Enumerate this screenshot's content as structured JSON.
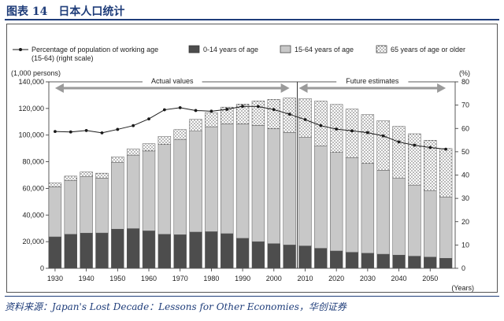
{
  "figure_title": "图表 14　日本人口统计",
  "source": "资料来源：Japan's Lost Decade：Lessons for Other Economies，华创证券",
  "colors": {
    "brand": "#1f3d7a",
    "young": "#4d4d4d",
    "working": "#c8c8c8",
    "elderly": "#ffffff",
    "line": "#1a1a1a",
    "arrow": "#9a9a9a"
  },
  "chart_data": {
    "type": "bar",
    "subtype": "stacked bar with line overlay",
    "left_axis_unit": "(1,000 persons)",
    "right_axis_unit": "(%)",
    "x_axis_unit": "(Years)",
    "ylim": [
      0,
      140000
    ],
    "y_ticks": [
      "0",
      "20,000",
      "40,000",
      "60,000",
      "80,000",
      "100,000",
      "120,000",
      "140,000"
    ],
    "y2lim": [
      0,
      80
    ],
    "y2_ticks": [
      "0",
      "10",
      "20",
      "30",
      "40",
      "50",
      "60",
      "70",
      "80"
    ],
    "x_ticks": [
      "1930",
      "1940",
      "1950",
      "1960",
      "1970",
      "1980",
      "1990",
      "2000",
      "2010",
      "2020",
      "2030",
      "2040",
      "2050"
    ],
    "x": [
      1930,
      1935,
      1940,
      1945,
      1950,
      1955,
      1960,
      1965,
      1970,
      1975,
      1980,
      1985,
      1990,
      1995,
      2000,
      2005,
      2010,
      2015,
      2020,
      2025,
      2030,
      2035,
      2040,
      2045,
      2050,
      2055
    ],
    "series": [
      {
        "name": "0-14 years of age",
        "pattern": "dark",
        "values": [
          23600,
          25500,
          26400,
          26500,
          29400,
          29800,
          28100,
          25500,
          25200,
          27200,
          27500,
          26000,
          22500,
          20000,
          18500,
          17500,
          16800,
          15000,
          13000,
          12000,
          11300,
          10600,
          9900,
          9100,
          8400,
          7500
        ]
      },
      {
        "name": "15-64 years of age",
        "pattern": "light",
        "values": [
          37600,
          40500,
          42400,
          41200,
          50200,
          55200,
          60000,
          67400,
          71600,
          75800,
          78800,
          82500,
          85900,
          87300,
          86300,
          84500,
          81700,
          77000,
          74000,
          71000,
          67400,
          63000,
          57900,
          53400,
          50000,
          46000
        ]
      },
      {
        "name": "65 years of age or older",
        "pattern": "dotted",
        "values": [
          2800,
          3200,
          3500,
          3700,
          4100,
          4700,
          5400,
          6200,
          7300,
          8900,
          10600,
          12500,
          14900,
          18300,
          22000,
          25800,
          28900,
          33500,
          36000,
          36500,
          36700,
          37300,
          38700,
          38500,
          37700,
          36400
        ]
      },
      {
        "name": "Percentage of population of working age (15-64) (right scale)",
        "axis": "right",
        "values": [
          58.7,
          58.5,
          59.1,
          58.1,
          59.6,
          61.2,
          64.1,
          68.0,
          68.9,
          67.7,
          67.4,
          68.2,
          69.5,
          69.4,
          68.1,
          66.1,
          63.8,
          61.2,
          59.7,
          59.0,
          58.2,
          56.8,
          54.2,
          52.8,
          51.8,
          51.1
        ]
      }
    ],
    "legend": {
      "position": "top",
      "line_label_line1": "Percentage of population of working age",
      "line_label_line2": "(15-64) (right scale)"
    },
    "annotations": [
      {
        "text": "Actual values",
        "from_year": 1930,
        "to_year": 2005
      },
      {
        "text": "Future estimates",
        "from_year": 2008,
        "to_year": 2055
      }
    ],
    "divider_year": 2007.5
  }
}
